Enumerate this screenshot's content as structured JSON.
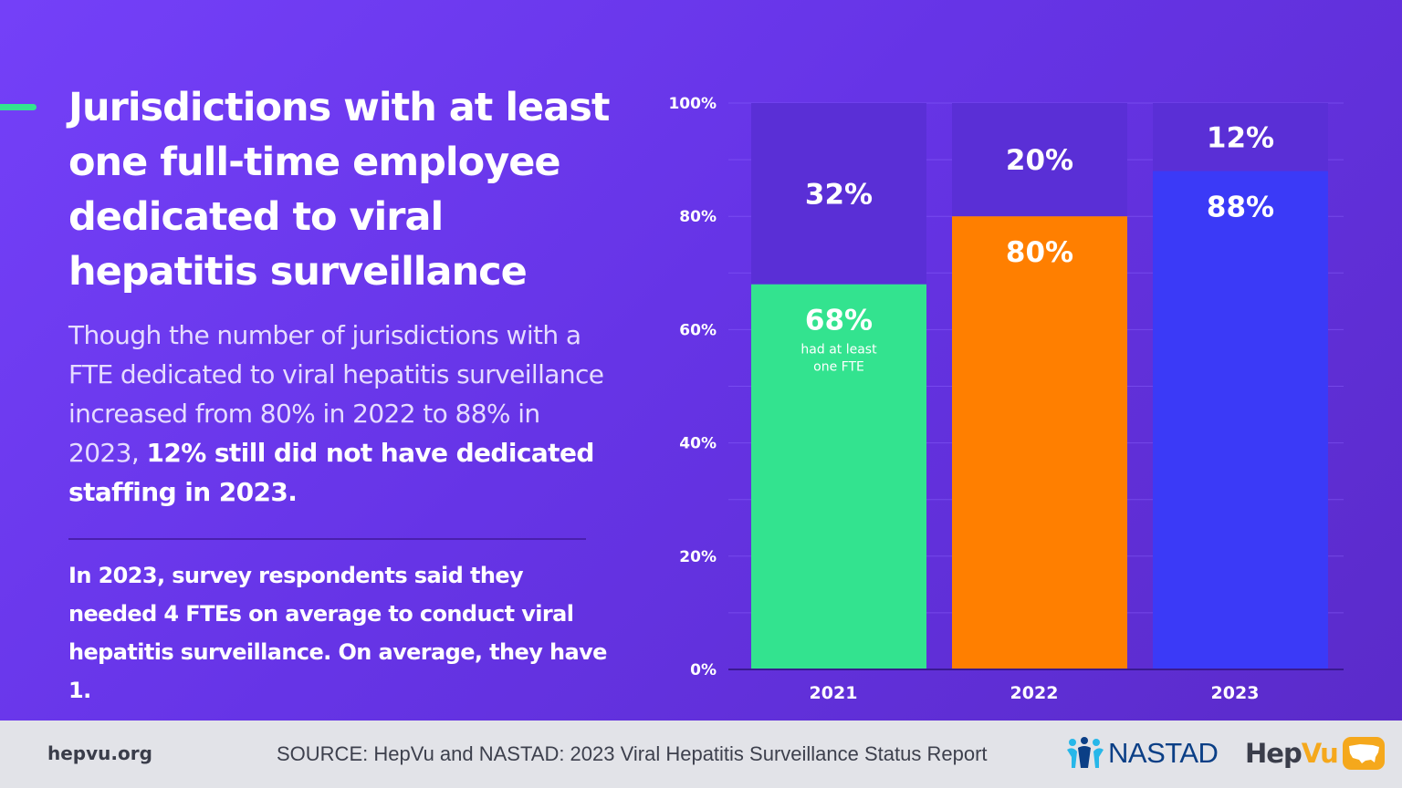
{
  "headline": "Jurisdictions with at least one full-time employee dedicated to viral hepatitis surveillance",
  "body": {
    "normal": "Though the number of jurisdictions with a FTE dedicated to viral hepatitis surveillance increased from 80% in 2022 to 88% in 2023,",
    "bold": "12% still did not have dedicated staffing in 2023."
  },
  "note": "In 2023, survey respondents said they needed 4 FTEs on average to conduct viral hepatitis surveillance. On average, they have 1.",
  "chart_data": {
    "type": "bar",
    "stacked": true,
    "categories": [
      "2021",
      "2022",
      "2023"
    ],
    "series": [
      {
        "values": [
          68,
          80,
          88
        ],
        "labels": [
          "68%",
          "80%",
          "88%"
        ],
        "colors": [
          "#33e38f",
          "#ff7f00",
          "#3b3af7"
        ]
      },
      {
        "values": [
          32,
          20,
          12
        ],
        "labels": [
          "32%",
          "20%",
          "12%"
        ],
        "colors": [
          "#5a2fd6",
          "#5a2fd6",
          "#5a2fd6"
        ]
      }
    ],
    "annotation": "had at least one FTE",
    "annotation_category": "2021",
    "yticks": [
      "0%",
      "20%",
      "40%",
      "60%",
      "80%",
      "100%"
    ],
    "ylim": [
      0,
      100
    ],
    "ytick_step": 20,
    "grid": true
  },
  "footer": {
    "site": "hepvu.org",
    "source": "SOURCE: HepVu and NASTAD: 2023 Viral Hepatitis Surveillance Status Report",
    "nastad": "NASTAD",
    "hepvu_a": "Hep",
    "hepvu_b": "Vu"
  },
  "colors": {
    "background": "#6d3bf0",
    "accent": "#33e38f",
    "footer_bg": "#e2e3e8",
    "nastad_blue": "#0b3f86",
    "nastad_cyan": "#27b7e9",
    "hepvu_orange": "#f5a81c"
  },
  "icons": [
    "nastad-people-icon",
    "usa-map-icon"
  ]
}
